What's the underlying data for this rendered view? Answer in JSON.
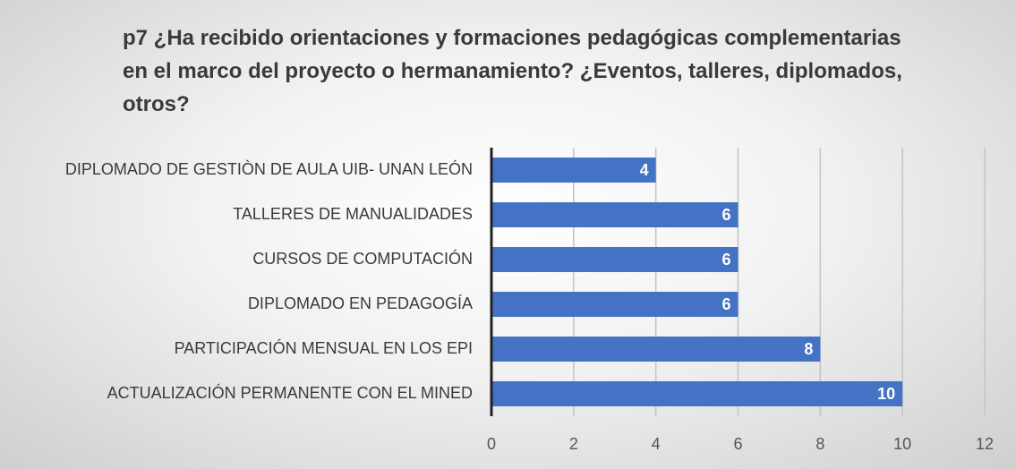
{
  "chart_data": {
    "type": "barh",
    "title": "p7 ¿Ha recibido orientaciones y formaciones pedagógicas complementarias en el marco del proyecto o hermanamiento?  ¿Eventos, talleres, diplomados, otros?",
    "categories": [
      "DIPLOMADO DE GESTIÒN DE AULA UIB- UNAN LEÓN",
      "TALLERES DE MANUALIDADES",
      "CURSOS DE COMPUTACIÓN",
      "DIPLOMADO EN PEDAGOGÍA",
      "PARTICIPACIÓN MENSUAL EN LOS EPI",
      "ACTUALIZACIÓN PERMANENTE CON EL MINED"
    ],
    "values": [
      4,
      6,
      6,
      6,
      8,
      10
    ],
    "color": "#4472c4",
    "xlim": [
      0,
      12
    ],
    "xticks": [
      0,
      2,
      4,
      6,
      8,
      10,
      12
    ],
    "grid": true
  }
}
